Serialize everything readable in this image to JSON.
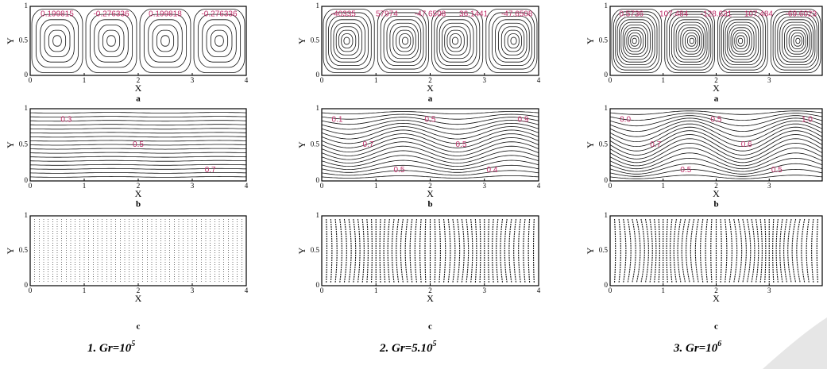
{
  "columns": [
    {
      "caption": {
        "text": "1.  Gr=10",
        "exponent": "5"
      },
      "panels": [
        {
          "letter": "a",
          "x_axis": "X",
          "y_axis": "Y",
          "xticks": [
            "0",
            "1",
            "2",
            "3",
            "4"
          ],
          "yticks": [
            "0",
            "0.5",
            "1"
          ],
          "labels": [
            "0.199815",
            "-0.276336",
            "0.199818",
            "-0.276336"
          ]
        },
        {
          "letter": "b",
          "x_axis": "X",
          "y_axis": "Y",
          "xticks": [
            "0",
            "1",
            "2",
            "3",
            "4"
          ],
          "yticks": [
            "0",
            "0.5",
            "1"
          ],
          "labels": [
            "0.3",
            "0.5",
            "0.7"
          ]
        },
        {
          "letter": "c",
          "x_axis": "X",
          "y_axis": "Y",
          "xticks": [
            "0",
            "1",
            "2",
            "3",
            "4"
          ],
          "yticks": [
            "0",
            "0.5",
            "1"
          ],
          "labels": []
        }
      ]
    },
    {
      "caption": {
        "text": "2.  Gr=5.10",
        "exponent": "5"
      },
      "panels": [
        {
          "letter": "a",
          "x_axis": "X",
          "y_axis": "Y",
          "xticks": [
            "0",
            "1",
            "2",
            "3",
            "4"
          ],
          "yticks": [
            "0",
            "0.5",
            "1"
          ],
          "labels": [
            "-40335",
            "57974",
            "-47.6508",
            "36.1441",
            "-47.6508"
          ]
        },
        {
          "letter": "b",
          "x_axis": "X",
          "y_axis": "Y",
          "xticks": [
            "0",
            "1",
            "2",
            "3",
            "4"
          ],
          "yticks": [
            "0",
            "0.5",
            "1"
          ],
          "labels": [
            "0.1",
            "0.7",
            "0.5",
            "0.5",
            "0.5",
            "0.4",
            "0.9"
          ]
        },
        {
          "letter": "c",
          "x_axis": "X",
          "y_axis": "Y",
          "xticks": [
            "0",
            "1",
            "2",
            "3",
            "4"
          ],
          "yticks": [
            "0",
            "0.5",
            "1"
          ],
          "labels": []
        }
      ]
    },
    {
      "caption": {
        "text": "3.  Gr=10",
        "exponent": "6"
      },
      "panels": [
        {
          "letter": "a",
          "x_axis": "X",
          "y_axis": "Y",
          "xticks": [
            "0",
            "1",
            "2",
            "3"
          ],
          "yticks": [
            "0",
            "0.5",
            "1"
          ],
          "labels": [
            "0.5736",
            "107.484",
            "-128.631",
            "107.484",
            "-69.6023"
          ]
        },
        {
          "letter": "b",
          "x_axis": "X",
          "y_axis": "Y",
          "xticks": [
            "0",
            "1",
            "2",
            "3"
          ],
          "yticks": [
            "0",
            "0.5",
            "1"
          ],
          "labels": [
            "0.0",
            "0.7",
            "0.5",
            "0.5",
            "0.6",
            "0.5",
            "1.0"
          ]
        },
        {
          "letter": "c",
          "x_axis": "X",
          "y_axis": "Y",
          "xticks": [
            "0",
            "1",
            "2",
            "3"
          ],
          "yticks": [
            "0",
            "0.5",
            "1"
          ],
          "labels": []
        }
      ]
    }
  ]
}
